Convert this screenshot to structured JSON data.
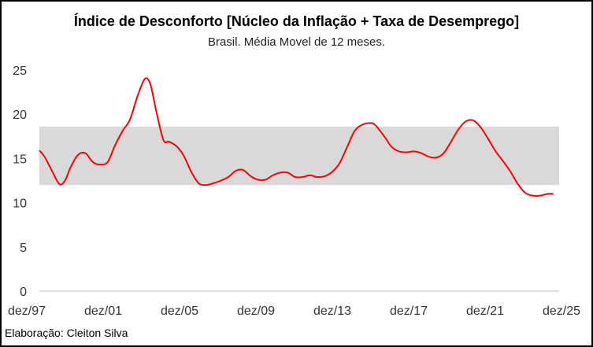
{
  "chart_data": {
    "type": "line",
    "title": "Índice de Desconforto [Núcleo da Inflação + Taxa de Desemprego]",
    "subtitle": "Brasil. Média Movel de 12 meses.",
    "credit": "Elaboração: Cleiton Silva",
    "xlabel": "",
    "ylabel": "",
    "ylim": [
      0,
      25
    ],
    "yticks": [
      0,
      5,
      10,
      15,
      20,
      25
    ],
    "xticks": [
      "dez/97",
      "dez/01",
      "dez/05",
      "dez/09",
      "dez/13",
      "dez/17",
      "dez/21",
      "dez/25"
    ],
    "xrange": [
      1997.92,
      2025.92
    ],
    "band": {
      "low": 12.0,
      "high": 18.6,
      "color": "#d9d9d9"
    },
    "grid": false,
    "series": [
      {
        "name": "Índice de Desconforto",
        "color": "#ff0000",
        "x": [
          1997.92,
          1998.2,
          1998.6,
          1999.0,
          1999.3,
          1999.6,
          2000.0,
          2000.4,
          2000.8,
          2001.2,
          2001.6,
          2002.0,
          2002.4,
          2002.8,
          2003.2,
          2003.6,
          2003.9,
          2004.2,
          2004.6,
          2004.9,
          2005.3,
          2005.7,
          2006.1,
          2006.5,
          2006.9,
          2007.3,
          2007.7,
          2008.1,
          2008.5,
          2008.9,
          2009.3,
          2009.7,
          2010.1,
          2010.5,
          2010.9,
          2011.3,
          2011.7,
          2012.1,
          2012.5,
          2012.9,
          2013.3,
          2013.7,
          2014.1,
          2014.5,
          2014.9,
          2015.3,
          2015.7,
          2016.0,
          2016.5,
          2016.9,
          2017.3,
          2017.7,
          2018.1,
          2018.5,
          2018.9,
          2019.3,
          2019.7,
          2020.1,
          2020.5,
          2020.9,
          2021.3,
          2021.7,
          2022.1,
          2022.5,
          2022.9,
          2023.3,
          2023.7,
          2024.1,
          2024.5,
          2024.9,
          2025.3,
          2025.6
        ],
        "values": [
          15.9,
          15.2,
          13.6,
          12.1,
          12.5,
          14.0,
          15.4,
          15.6,
          14.6,
          14.3,
          14.6,
          16.5,
          18.1,
          19.4,
          22.0,
          24.0,
          23.4,
          20.5,
          17.1,
          16.9,
          16.4,
          15.3,
          13.5,
          12.2,
          12.0,
          12.2,
          12.5,
          12.9,
          13.6,
          13.7,
          13.0,
          12.6,
          12.6,
          13.1,
          13.4,
          13.4,
          12.9,
          12.9,
          13.1,
          12.9,
          13.0,
          13.5,
          14.5,
          16.3,
          18.1,
          18.8,
          19.0,
          18.8,
          17.5,
          16.3,
          15.8,
          15.7,
          15.8,
          15.6,
          15.2,
          15.1,
          15.6,
          16.9,
          18.3,
          19.2,
          19.3,
          18.5,
          17.2,
          15.8,
          14.7,
          13.5,
          12.1,
          11.1,
          10.8,
          10.8,
          11.0,
          11.0
        ]
      }
    ]
  }
}
